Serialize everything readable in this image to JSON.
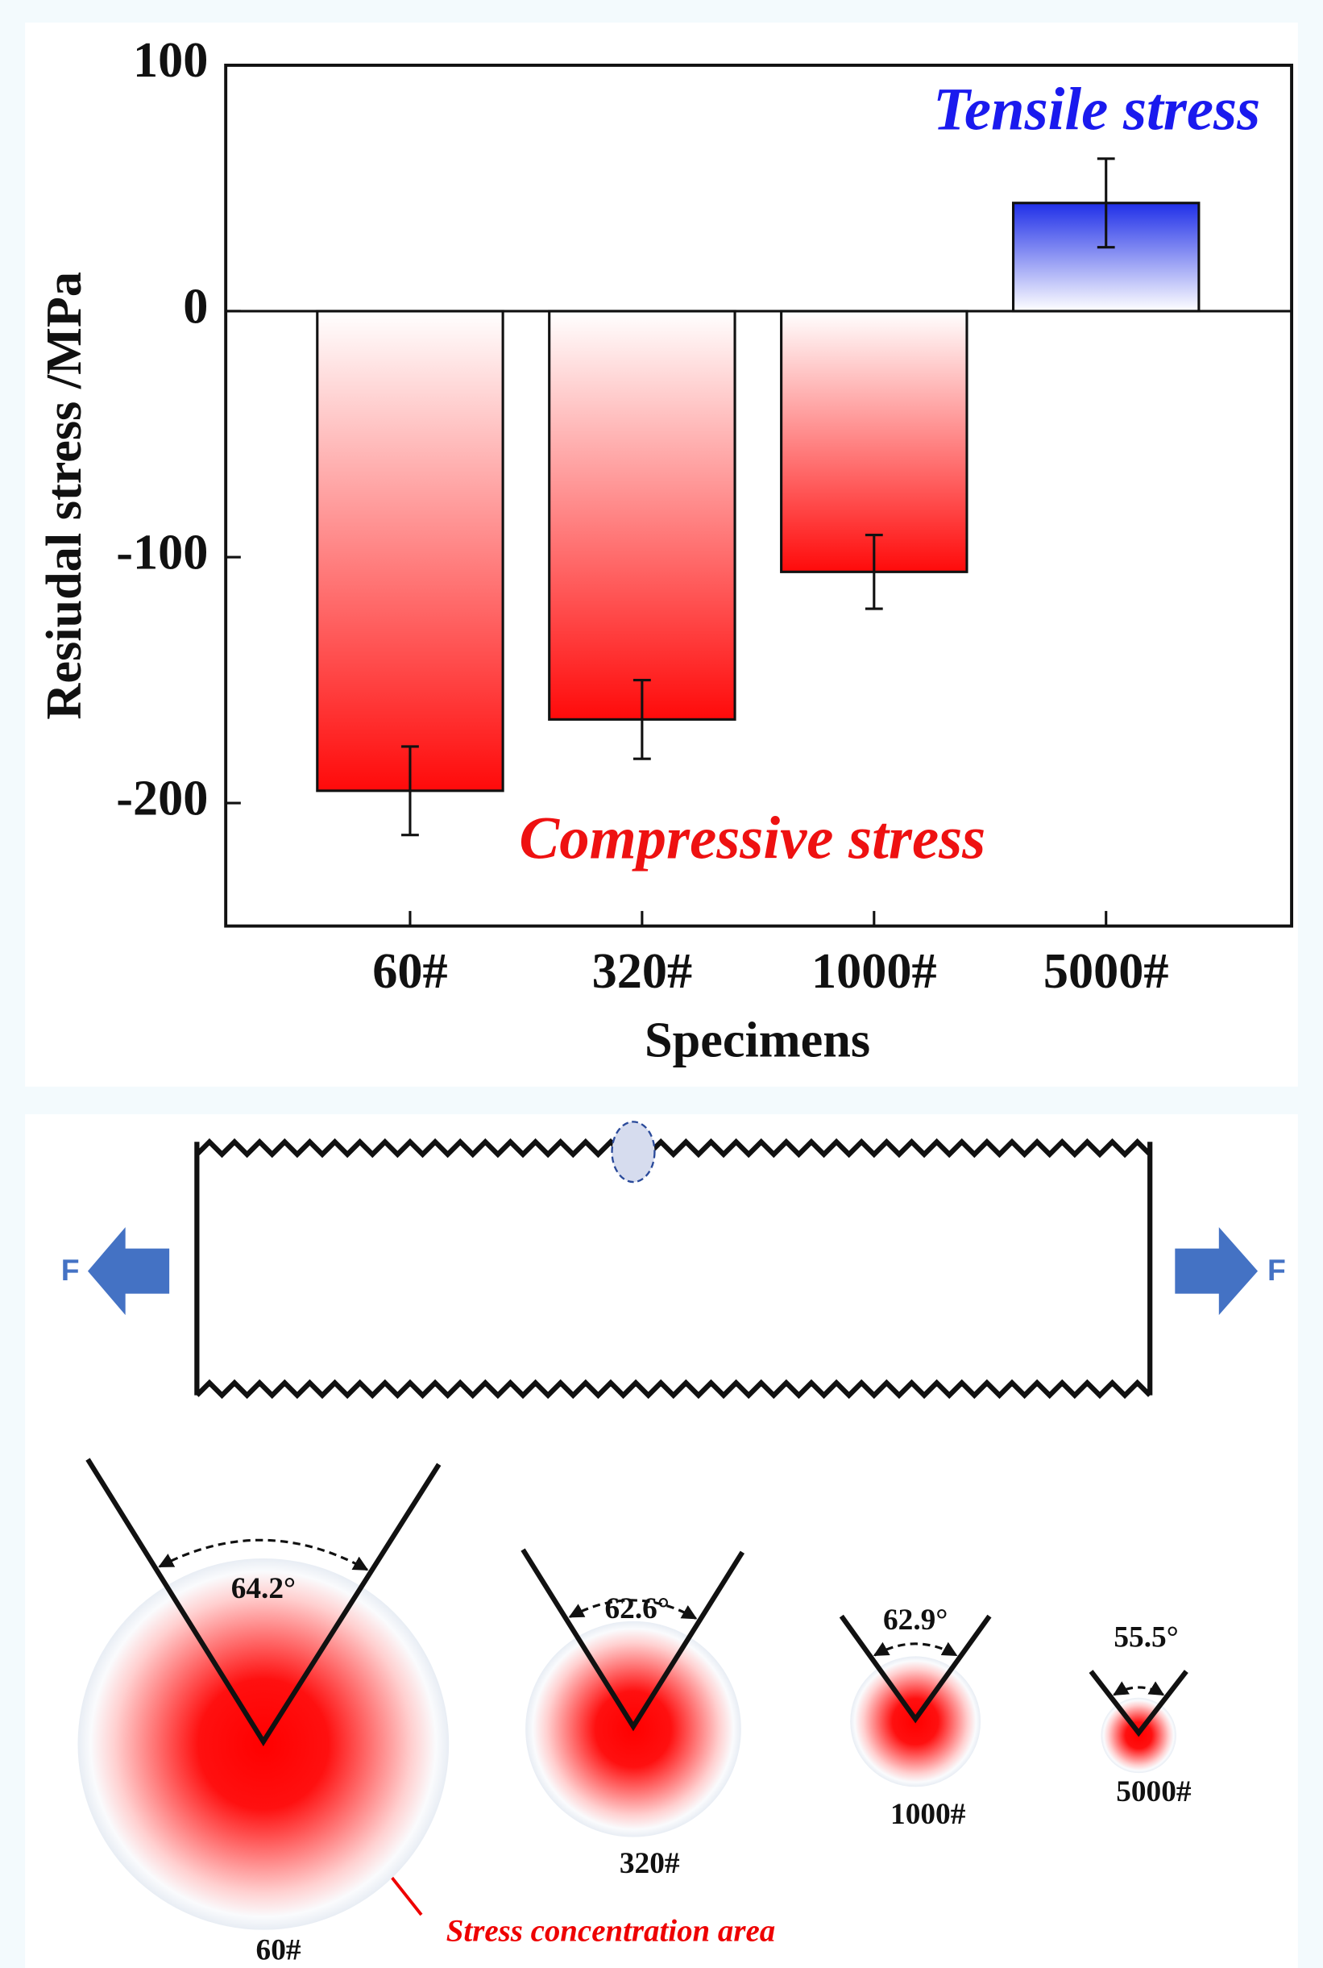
{
  "chart_data": {
    "type": "bar",
    "y_label": "Resiudal stress /MPa",
    "x_label": "Specimens",
    "categories": [
      "60#",
      "320#",
      "1000#",
      "5000#"
    ],
    "values": [
      -195,
      -166,
      -106,
      44
    ],
    "errors": [
      18,
      16,
      15,
      18
    ],
    "colors": [
      "#ff0000",
      "#ff0000",
      "#ff0000",
      "#0000ff"
    ],
    "ylim": [
      -250,
      100
    ],
    "yticks": [
      -200,
      -100,
      0,
      100
    ],
    "annotations": [
      "Tensile stress",
      "Compressive stress"
    ],
    "annotation_colors": [
      "#1a1aee",
      "#ee1111"
    ]
  },
  "diagram": {
    "force_left": "F",
    "force_right": "F",
    "notches": [
      {
        "angle": "64.2°",
        "label": "60#"
      },
      {
        "angle": "62.6°",
        "label": "320#"
      },
      {
        "angle": "62.9°",
        "label": "1000#"
      },
      {
        "angle": "55.5°",
        "label": "5000#"
      }
    ],
    "annotation": "Stress concentration area"
  }
}
